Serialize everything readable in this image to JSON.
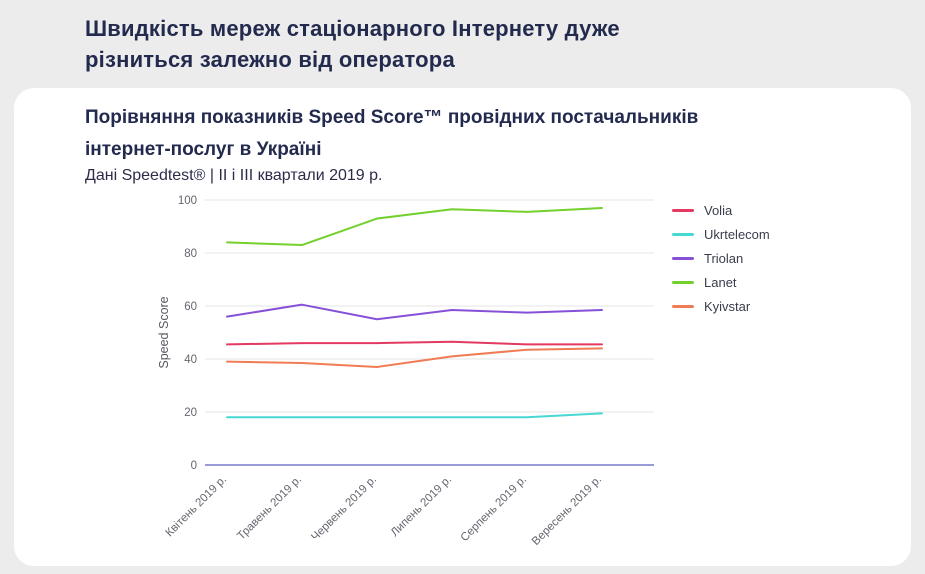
{
  "page": {
    "header_line1": "Швидкість мереж стаціонарного Інтернету дуже",
    "header_line2": "різниться залежно від оператора"
  },
  "card": {
    "title_line1": "Порівняння показників Speed Score™ провідних постачальників",
    "title_line2": "інтернет-послуг в Україні",
    "subtitle": "Дані Speedtest® | II і III квартали 2019 р."
  },
  "chart_data": {
    "type": "line",
    "title": "Порівняння показників Speed Score™ провідних постачальників інтернет-послуг в Україні",
    "subtitle": "Дані Speedtest® | II і III квартали 2019 р.",
    "categories": [
      "Квітень 2019 р.",
      "Травень 2019 р.",
      "Червень 2019 р.",
      "Липень 2019 р.",
      "Серпень 2019 р.",
      "Вересень 2019 р."
    ],
    "series": [
      {
        "name": "Volia",
        "color": "#e23a60",
        "values": [
          45.5,
          46,
          46,
          46.5,
          45.5,
          45.5
        ]
      },
      {
        "name": "Ukrtelecom",
        "color": "#47d8d4",
        "values": [
          18,
          18,
          18,
          18,
          18,
          19.5
        ]
      },
      {
        "name": "Triolan",
        "color": "#8651d8",
        "values": [
          56,
          60.5,
          55,
          58.5,
          57.5,
          58.5
        ]
      },
      {
        "name": "Lanet",
        "color": "#74d02c",
        "values": [
          84,
          83,
          93,
          96.5,
          95.5,
          97
        ]
      },
      {
        "name": "Kyivstar",
        "color": "#ef7c54",
        "values": [
          39,
          38.5,
          37,
          41,
          43.5,
          44
        ]
      }
    ],
    "xlabel": "",
    "ylabel": "Speed Score",
    "ylim": [
      0,
      100
    ],
    "yticks": [
      0,
      20,
      40,
      60,
      80,
      100
    ],
    "grid": true,
    "legend_position": "right",
    "grid_color": "#e4e4e6",
    "axis_line_color": "#7678d0",
    "tick_color": "#63666e"
  }
}
